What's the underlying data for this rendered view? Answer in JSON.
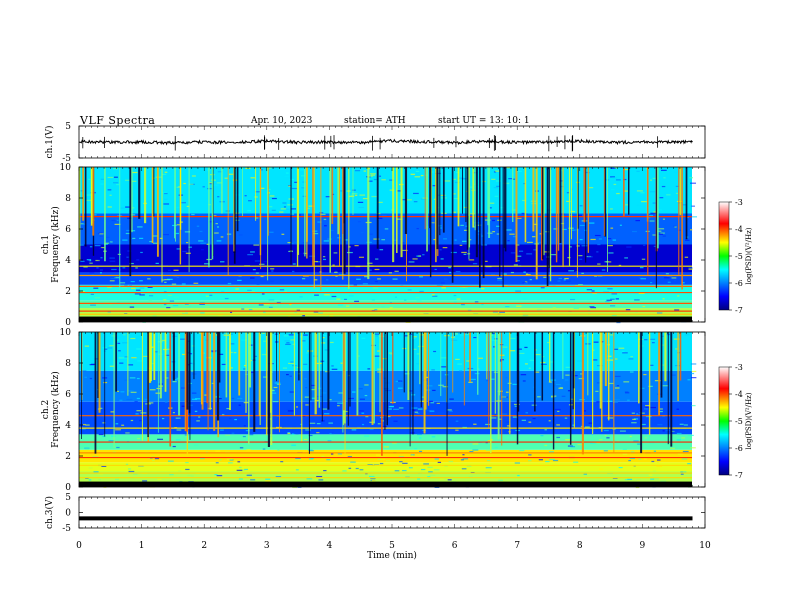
{
  "header": {
    "title": "VLF  Spectra",
    "date": "Apr. 10, 2023",
    "station": "station= ATH",
    "start": "start  UT  =    13: 10: 1"
  },
  "chart_data": [
    {
      "type": "line",
      "panel": "ch1-waveform",
      "title": "",
      "xlabel": "",
      "ylabel": "ch.1(V)",
      "xlim": [
        0,
        10
      ],
      "ylim": [
        -5,
        5
      ],
      "y_ticks": [
        "5",
        "-5"
      ],
      "series": [
        {
          "x": [
            0,
            0.5,
            1,
            1.5,
            2,
            2.5,
            3,
            3.5,
            4,
            4.5,
            5,
            5.5,
            6,
            6.5,
            7,
            7.5,
            8,
            8.5,
            9,
            9.5,
            9.8
          ],
          "values": [
            0.2,
            -0.1,
            0.0,
            -0.3,
            0.0,
            -0.2,
            0.3,
            -0.1,
            0.0,
            -0.2,
            0.4,
            0.1,
            -0.2,
            0.2,
            -0.1,
            0.0,
            0.3,
            -0.2,
            0.1,
            -0.1,
            0.0
          ]
        }
      ],
      "color": "#000000"
    },
    {
      "type": "heatmap",
      "panel": "ch1-spectrogram",
      "title": "",
      "xlabel": "",
      "ylabel": "ch.1\nFrequency  (kHz)",
      "xlim": [
        0,
        10
      ],
      "ylim": [
        0,
        10
      ],
      "y_ticks": [
        "0",
        "2",
        "4",
        "6",
        "8",
        "10"
      ],
      "colorbar": {
        "label": "log(PSD)(V²/Hz)",
        "range": [
          -7,
          -3
        ],
        "ticks": [
          "-3",
          "-4",
          "-5",
          "-6",
          "-7"
        ]
      }
    },
    {
      "type": "heatmap",
      "panel": "ch2-spectrogram",
      "title": "",
      "xlabel": "",
      "ylabel": "ch.2\nFrequency  (kHz)",
      "xlim": [
        0,
        10
      ],
      "ylim": [
        0,
        10
      ],
      "y_ticks": [
        "0",
        "2",
        "4",
        "6",
        "8",
        "10"
      ],
      "colorbar": {
        "label": "log(PSD)(V²/Hz)",
        "range": [
          -7,
          -3
        ],
        "ticks": [
          "-3",
          "-4",
          "-5",
          "-6",
          "-7"
        ]
      }
    },
    {
      "type": "line",
      "panel": "ch3-waveform",
      "title": "",
      "xlabel": "Time  (min)",
      "ylabel": "ch.3(V)",
      "xlim": [
        0,
        10
      ],
      "ylim": [
        -5,
        5
      ],
      "y_ticks": [
        "5",
        "0",
        "-5"
      ],
      "x_ticks": [
        "0",
        "1",
        "2",
        "3",
        "4",
        "5",
        "6",
        "7",
        "8",
        "9",
        "10"
      ],
      "series": [
        {
          "x": [
            0,
            9.8
          ],
          "values": [
            -1.9,
            -1.9
          ]
        }
      ],
      "color": "#000000"
    }
  ]
}
